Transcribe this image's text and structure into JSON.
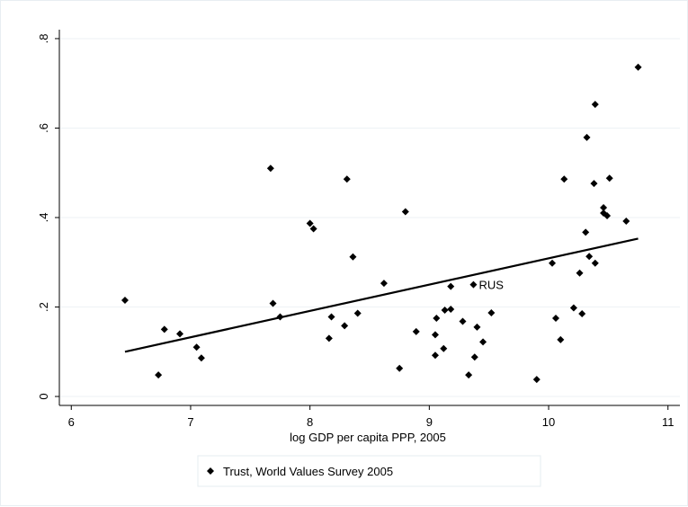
{
  "chart_data": {
    "type": "scatter",
    "title": "",
    "xlabel": "log GDP per capita PPP, 2005",
    "ylabel": "",
    "xlim": [
      5.9,
      11.1
    ],
    "ylim": [
      -0.02,
      0.82
    ],
    "xticks": [
      6,
      7,
      8,
      9,
      10,
      11
    ],
    "xtick_labels": [
      "6",
      "7",
      "8",
      "9",
      "10",
      "11"
    ],
    "yticks": [
      0,
      0.2,
      0.4,
      0.6,
      0.8
    ],
    "ytick_labels": [
      "0",
      ".2",
      ".4",
      ".6",
      ".8"
    ],
    "grid": "horizontal",
    "legend": {
      "placement": "bottom",
      "entries": [
        "Trust, World Values Survey 2005"
      ]
    },
    "series": [
      {
        "name": "Trust, World Values Survey 2005",
        "marker": "diamond",
        "color": "#000000",
        "points": [
          {
            "x": 6.45,
            "y": 0.215
          },
          {
            "x": 6.73,
            "y": 0.048
          },
          {
            "x": 6.78,
            "y": 0.15
          },
          {
            "x": 6.91,
            "y": 0.14
          },
          {
            "x": 7.05,
            "y": 0.11
          },
          {
            "x": 7.09,
            "y": 0.086
          },
          {
            "x": 7.67,
            "y": 0.51
          },
          {
            "x": 7.69,
            "y": 0.208
          },
          {
            "x": 7.75,
            "y": 0.178
          },
          {
            "x": 8.0,
            "y": 0.387
          },
          {
            "x": 8.03,
            "y": 0.375
          },
          {
            "x": 8.16,
            "y": 0.13
          },
          {
            "x": 8.18,
            "y": 0.178
          },
          {
            "x": 8.29,
            "y": 0.158
          },
          {
            "x": 8.31,
            "y": 0.486
          },
          {
            "x": 8.36,
            "y": 0.312
          },
          {
            "x": 8.4,
            "y": 0.186
          },
          {
            "x": 8.62,
            "y": 0.253
          },
          {
            "x": 8.75,
            "y": 0.063
          },
          {
            "x": 8.8,
            "y": 0.413
          },
          {
            "x": 8.89,
            "y": 0.145
          },
          {
            "x": 9.05,
            "y": 0.092
          },
          {
            "x": 9.05,
            "y": 0.138
          },
          {
            "x": 9.06,
            "y": 0.175
          },
          {
            "x": 9.12,
            "y": 0.107
          },
          {
            "x": 9.13,
            "y": 0.193
          },
          {
            "x": 9.18,
            "y": 0.246
          },
          {
            "x": 9.18,
            "y": 0.195
          },
          {
            "x": 9.28,
            "y": 0.168
          },
          {
            "x": 9.33,
            "y": 0.048
          },
          {
            "x": 9.37,
            "y": 0.25,
            "label": "RUS"
          },
          {
            "x": 9.38,
            "y": 0.088
          },
          {
            "x": 9.4,
            "y": 0.155
          },
          {
            "x": 9.45,
            "y": 0.122
          },
          {
            "x": 9.52,
            "y": 0.187
          },
          {
            "x": 9.9,
            "y": 0.038
          },
          {
            "x": 10.03,
            "y": 0.298
          },
          {
            "x": 10.06,
            "y": 0.175
          },
          {
            "x": 10.1,
            "y": 0.127
          },
          {
            "x": 10.13,
            "y": 0.486
          },
          {
            "x": 10.21,
            "y": 0.198
          },
          {
            "x": 10.26,
            "y": 0.276
          },
          {
            "x": 10.28,
            "y": 0.185
          },
          {
            "x": 10.31,
            "y": 0.367
          },
          {
            "x": 10.32,
            "y": 0.579
          },
          {
            "x": 10.34,
            "y": 0.313
          },
          {
            "x": 10.38,
            "y": 0.476
          },
          {
            "x": 10.39,
            "y": 0.653
          },
          {
            "x": 10.39,
            "y": 0.298
          },
          {
            "x": 10.46,
            "y": 0.422
          },
          {
            "x": 10.46,
            "y": 0.41
          },
          {
            "x": 10.49,
            "y": 0.404
          },
          {
            "x": 10.51,
            "y": 0.488
          },
          {
            "x": 10.65,
            "y": 0.392
          },
          {
            "x": 10.75,
            "y": 0.736
          }
        ]
      }
    ],
    "fit_line": {
      "type": "linear",
      "points": [
        {
          "x": 6.45,
          "y": 0.1
        },
        {
          "x": 10.75,
          "y": 0.353
        }
      ]
    }
  }
}
